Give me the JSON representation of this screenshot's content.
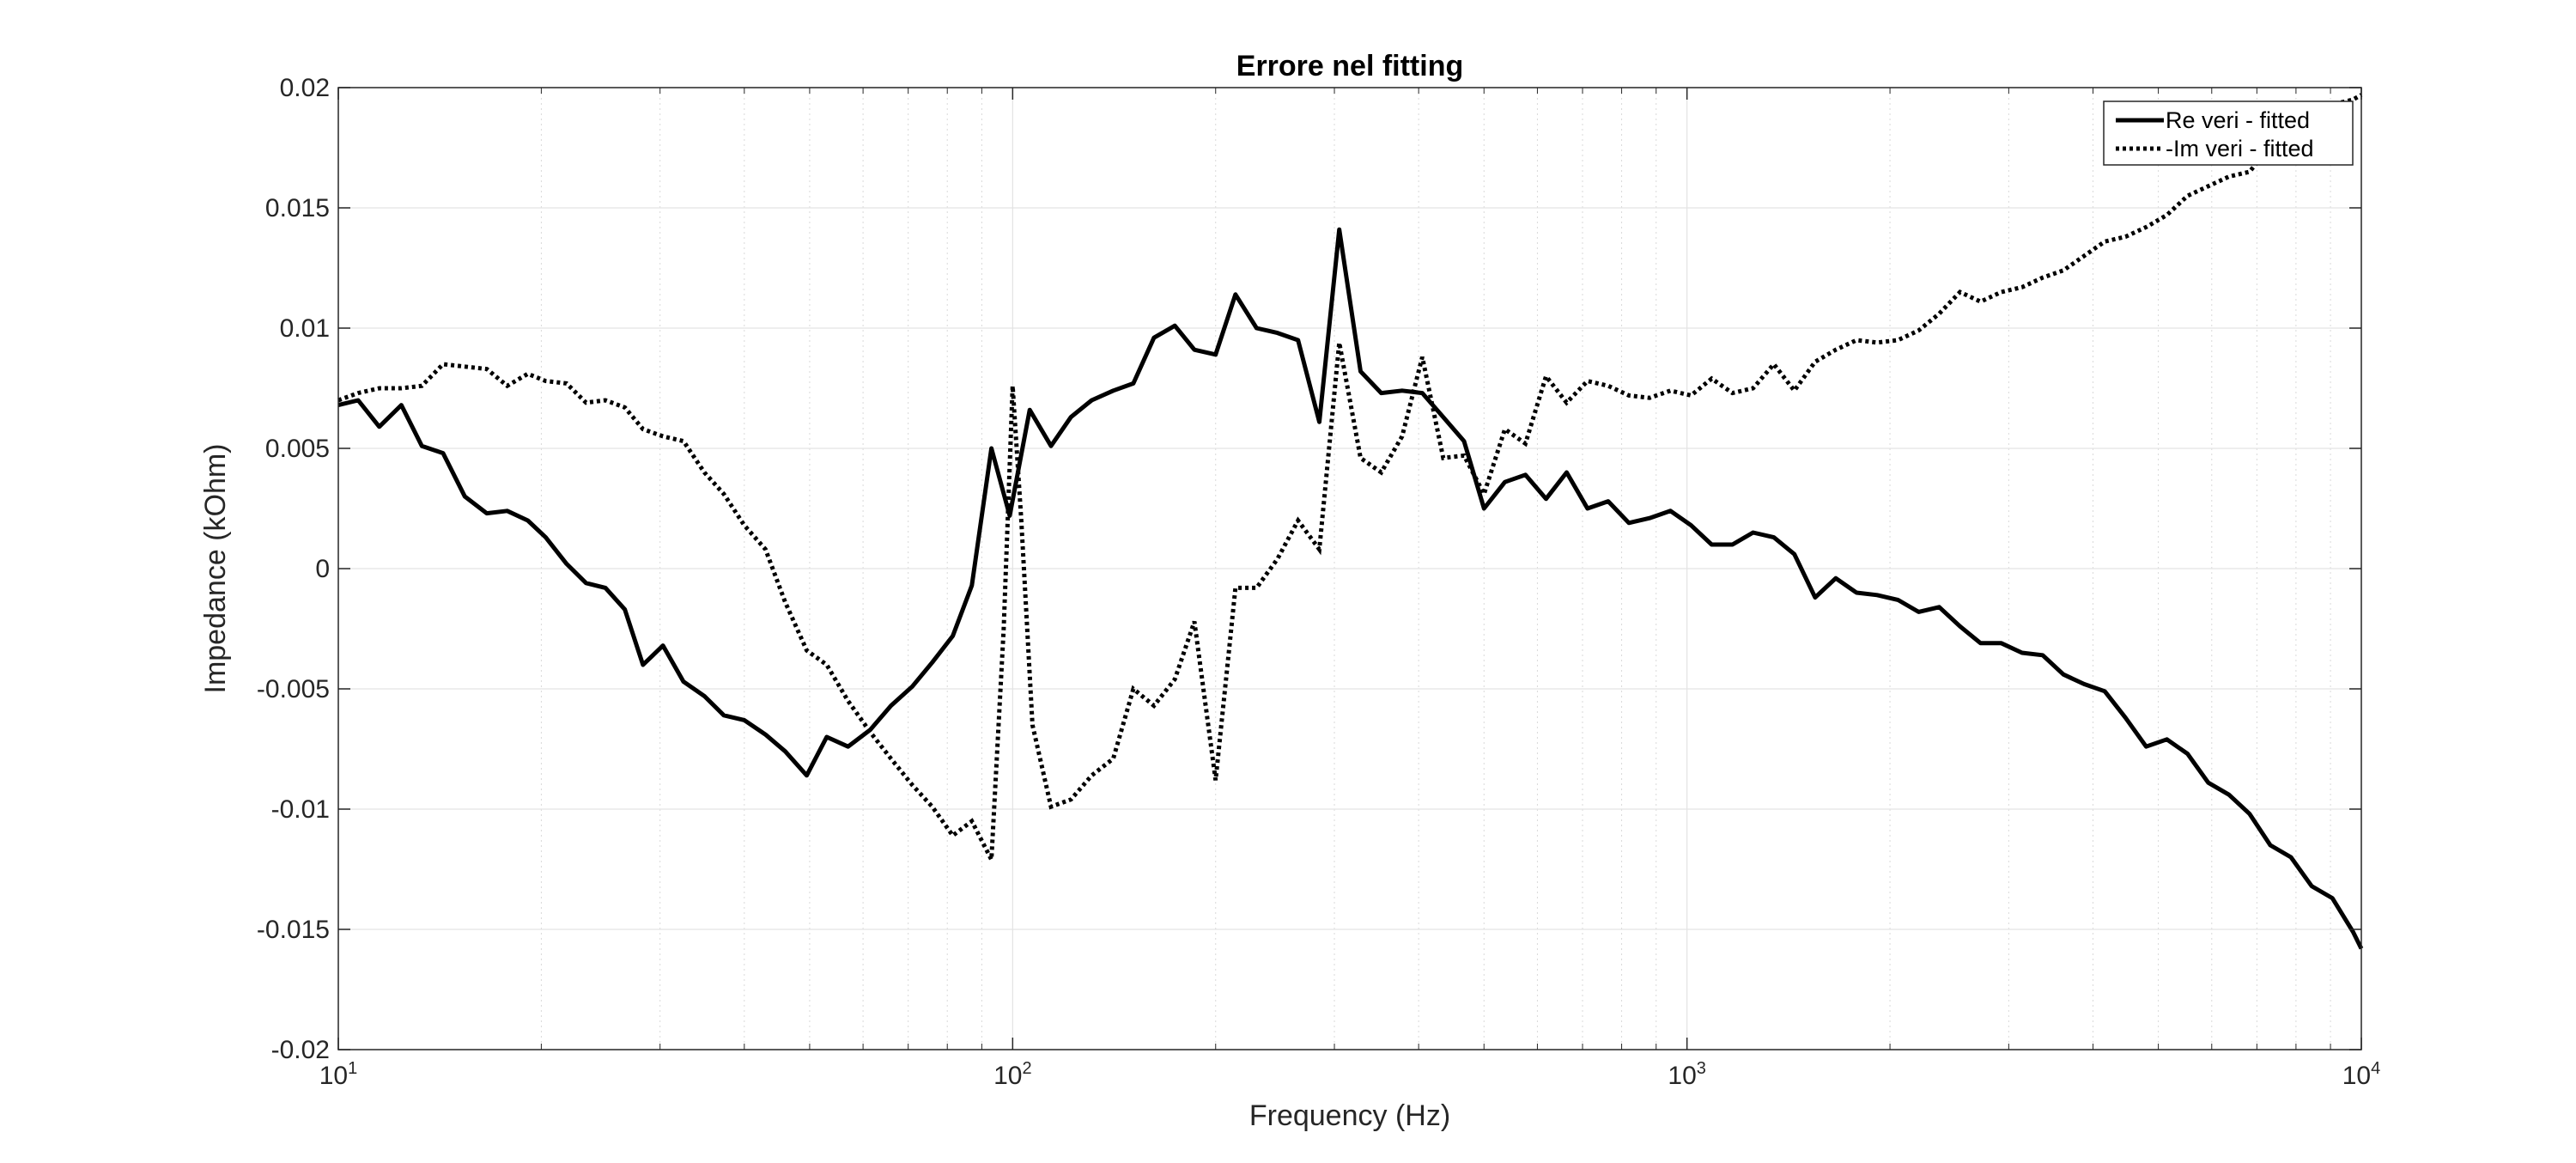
{
  "chart_data": {
    "type": "line",
    "title": "Errore nel fitting",
    "xlabel": "Frequency (Hz)",
    "ylabel": "Impedance (kOhm)",
    "xscale": "log",
    "xlim": [
      10,
      10000
    ],
    "ylim": [
      -0.02,
      0.02
    ],
    "grid": true,
    "legend_position": "top-right",
    "x_ticks": [
      {
        "value": 10,
        "base": "10",
        "exp": "1"
      },
      {
        "value": 100,
        "base": "10",
        "exp": "2"
      },
      {
        "value": 1000,
        "base": "10",
        "exp": "3"
      },
      {
        "value": 10000,
        "base": "10",
        "exp": "4"
      }
    ],
    "y_ticks": [
      {
        "value": 0.02,
        "label": "0.02"
      },
      {
        "value": 0.015,
        "label": "0.015"
      },
      {
        "value": 0.01,
        "label": "0.01"
      },
      {
        "value": 0.005,
        "label": "0.005"
      },
      {
        "value": 0,
        "label": "0"
      },
      {
        "value": -0.005,
        "label": "-0.005"
      },
      {
        "value": -0.01,
        "label": "-0.01"
      },
      {
        "value": -0.015,
        "label": "-0.015"
      },
      {
        "value": -0.02,
        "label": "-0.02"
      }
    ],
    "series": [
      {
        "name": "Re veri - fitted",
        "style": "solid",
        "color": "#000000",
        "points": [
          [
            10,
            0.0068
          ],
          [
            10.7,
            0.007
          ],
          [
            11.5,
            0.0059
          ],
          [
            12.4,
            0.0068
          ],
          [
            13.3,
            0.0051
          ],
          [
            14.3,
            0.0048
          ],
          [
            15.4,
            0.003
          ],
          [
            16.6,
            0.0023
          ],
          [
            17.8,
            0.0024
          ],
          [
            19.1,
            0.002
          ],
          [
            20.3,
            0.0013
          ],
          [
            21.8,
            0.0002
          ],
          [
            23.3,
            -0.0006
          ],
          [
            24.9,
            -0.0008
          ],
          [
            26.6,
            -0.0017
          ],
          [
            28.3,
            -0.004
          ],
          [
            30.3,
            -0.0032
          ],
          [
            32.5,
            -0.0047
          ],
          [
            34.9,
            -0.0053
          ],
          [
            37.3,
            -0.0061
          ],
          [
            40,
            -0.0063
          ],
          [
            43,
            -0.0069
          ],
          [
            46,
            -0.0076
          ],
          [
            49.5,
            -0.0086
          ],
          [
            53,
            -0.007
          ],
          [
            57,
            -0.0074
          ],
          [
            61.5,
            -0.0067
          ],
          [
            66,
            -0.0057
          ],
          [
            71,
            -0.0049
          ],
          [
            76,
            -0.0039
          ],
          [
            81.5,
            -0.0028
          ],
          [
            87,
            -0.0007
          ],
          [
            93,
            0.005
          ],
          [
            99,
            0.0022
          ],
          [
            106,
            0.0066
          ],
          [
            114,
            0.0051
          ],
          [
            122,
            0.0063
          ],
          [
            131,
            0.007
          ],
          [
            141,
            0.0074
          ],
          [
            151,
            0.0077
          ],
          [
            162,
            0.0096
          ],
          [
            174,
            0.0101
          ],
          [
            186,
            0.0091
          ],
          [
            200,
            0.0089
          ],
          [
            214,
            0.0114
          ],
          [
            230,
            0.01
          ],
          [
            247,
            0.0098
          ],
          [
            265,
            0.0095
          ],
          [
            285,
            0.0061
          ],
          [
            305,
            0.0141
          ],
          [
            328,
            0.0082
          ],
          [
            352,
            0.0073
          ],
          [
            378,
            0.0074
          ],
          [
            405,
            0.0073
          ],
          [
            435,
            0.0063
          ],
          [
            467,
            0.0053
          ],
          [
            500,
            0.0025
          ],
          [
            537,
            0.0036
          ],
          [
            576,
            0.0039
          ],
          [
            618,
            0.0029
          ],
          [
            663,
            0.004
          ],
          [
            712,
            0.0025
          ],
          [
            764,
            0.0028
          ],
          [
            820,
            0.0019
          ],
          [
            880,
            0.0021
          ],
          [
            945,
            0.0024
          ],
          [
            1014,
            0.0018
          ],
          [
            1088,
            0.001
          ],
          [
            1168,
            0.001
          ],
          [
            1253,
            0.0015
          ],
          [
            1345,
            0.0013
          ],
          [
            1443,
            0.0006
          ],
          [
            1549,
            -0.0012
          ],
          [
            1662,
            -0.0004
          ],
          [
            1784,
            -0.001
          ],
          [
            1914,
            -0.0011
          ],
          [
            2055,
            -0.0013
          ],
          [
            2205,
            -0.0018
          ],
          [
            2366,
            -0.0016
          ],
          [
            2540,
            -0.0024
          ],
          [
            2725,
            -0.0031
          ],
          [
            2925,
            -0.0031
          ],
          [
            3139,
            -0.0035
          ],
          [
            3369,
            -0.0036
          ],
          [
            3615,
            -0.0044
          ],
          [
            3880,
            -0.0048
          ],
          [
            4164,
            -0.0051
          ],
          [
            4469,
            -0.0062
          ],
          [
            4796,
            -0.0074
          ],
          [
            5147,
            -0.0071
          ],
          [
            5524,
            -0.0077
          ],
          [
            5928,
            -0.0089
          ],
          [
            6362,
            -0.0094
          ],
          [
            6828,
            -0.0102
          ],
          [
            7328,
            -0.0115
          ],
          [
            7864,
            -0.012
          ],
          [
            8439,
            -0.0132
          ],
          [
            9057,
            -0.0137
          ],
          [
            9720,
            -0.0151
          ],
          [
            10000,
            -0.0158
          ]
        ]
      },
      {
        "name": "-Im veri - fitted",
        "style": "dotted",
        "color": "#000000",
        "points": [
          [
            10,
            0.007
          ],
          [
            10.7,
            0.0073
          ],
          [
            11.5,
            0.0075
          ],
          [
            12.4,
            0.0075
          ],
          [
            13.3,
            0.0076
          ],
          [
            14.3,
            0.0085
          ],
          [
            15.4,
            0.0084
          ],
          [
            16.6,
            0.0083
          ],
          [
            17.8,
            0.0076
          ],
          [
            19.1,
            0.0081
          ],
          [
            20.3,
            0.0078
          ],
          [
            21.8,
            0.0077
          ],
          [
            23.3,
            0.0069
          ],
          [
            24.9,
            0.007
          ],
          [
            26.6,
            0.0067
          ],
          [
            28.3,
            0.0058
          ],
          [
            30.3,
            0.0055
          ],
          [
            32.5,
            0.0053
          ],
          [
            34.9,
            0.004
          ],
          [
            37.3,
            0.0031
          ],
          [
            40,
            0.0018
          ],
          [
            43,
            0.0008
          ],
          [
            46,
            -0.0014
          ],
          [
            49.5,
            -0.0034
          ],
          [
            53,
            -0.004
          ],
          [
            57,
            -0.0055
          ],
          [
            61.5,
            -0.0068
          ],
          [
            66,
            -0.0079
          ],
          [
            71,
            -0.009
          ],
          [
            76,
            -0.0099
          ],
          [
            81.5,
            -0.0111
          ],
          [
            87,
            -0.0105
          ],
          [
            93,
            -0.0121
          ],
          [
            97,
            -0.0025
          ],
          [
            100,
            0.0076
          ],
          [
            103,
            0.002
          ],
          [
            107,
            -0.0065
          ],
          [
            114,
            -0.0099
          ],
          [
            122,
            -0.0096
          ],
          [
            131,
            -0.0086
          ],
          [
            141,
            -0.0079
          ],
          [
            151,
            -0.005
          ],
          [
            162,
            -0.0057
          ],
          [
            174,
            -0.0046
          ],
          [
            186,
            -0.0022
          ],
          [
            200,
            -0.0088
          ],
          [
            214,
            -0.0008
          ],
          [
            230,
            -0.0008
          ],
          [
            247,
            0.0004
          ],
          [
            265,
            0.002
          ],
          [
            285,
            0.0008
          ],
          [
            305,
            0.0094
          ],
          [
            328,
            0.0046
          ],
          [
            352,
            0.004
          ],
          [
            378,
            0.0055
          ],
          [
            405,
            0.0088
          ],
          [
            435,
            0.0046
          ],
          [
            467,
            0.0047
          ],
          [
            500,
            0.0031
          ],
          [
            537,
            0.0058
          ],
          [
            576,
            0.0052
          ],
          [
            618,
            0.008
          ],
          [
            663,
            0.0069
          ],
          [
            712,
            0.0078
          ],
          [
            764,
            0.0076
          ],
          [
            820,
            0.0072
          ],
          [
            880,
            0.0071
          ],
          [
            945,
            0.0074
          ],
          [
            1014,
            0.0072
          ],
          [
            1088,
            0.0079
          ],
          [
            1168,
            0.0073
          ],
          [
            1253,
            0.0075
          ],
          [
            1345,
            0.0085
          ],
          [
            1443,
            0.0074
          ],
          [
            1549,
            0.0086
          ],
          [
            1662,
            0.0091
          ],
          [
            1784,
            0.0095
          ],
          [
            1914,
            0.0094
          ],
          [
            2055,
            0.0095
          ],
          [
            2205,
            0.0099
          ],
          [
            2366,
            0.0106
          ],
          [
            2540,
            0.0115
          ],
          [
            2725,
            0.0111
          ],
          [
            2925,
            0.0115
          ],
          [
            3139,
            0.0117
          ],
          [
            3369,
            0.0121
          ],
          [
            3615,
            0.0124
          ],
          [
            3880,
            0.013
          ],
          [
            4164,
            0.0136
          ],
          [
            4469,
            0.0138
          ],
          [
            4796,
            0.0142
          ],
          [
            5147,
            0.0147
          ],
          [
            5524,
            0.0155
          ],
          [
            5928,
            0.0159
          ],
          [
            6362,
            0.0163
          ],
          [
            6828,
            0.0165
          ],
          [
            7328,
            0.0176
          ],
          [
            7864,
            0.0185
          ],
          [
            8439,
            0.0191
          ],
          [
            9057,
            0.0193
          ],
          [
            9720,
            0.0195
          ],
          [
            10000,
            0.0197
          ]
        ]
      }
    ]
  }
}
